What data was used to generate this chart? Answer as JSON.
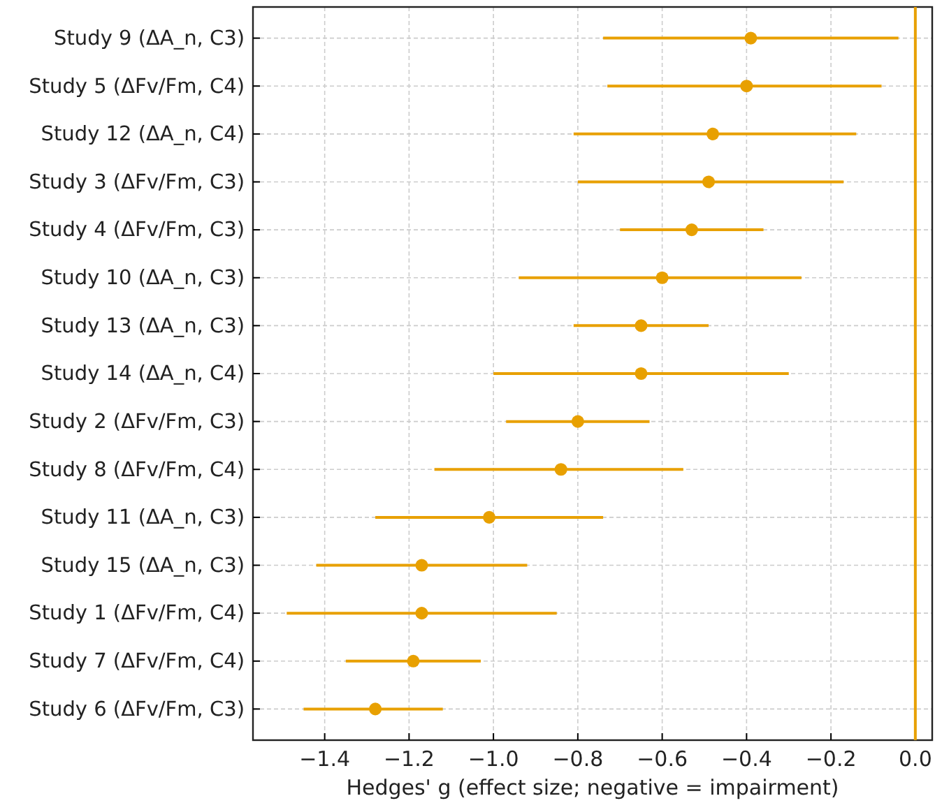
{
  "chart_data": {
    "type": "scatter",
    "orientation": "horizontal",
    "xlabel": "Hedges' g (effect size; negative = impairment)",
    "categories": [
      "Study 9 (ΔA_n, C3)",
      "Study 5 (ΔFv/Fm, C4)",
      "Study 12 (ΔA_n, C4)",
      "Study 3 (ΔFv/Fm, C3)",
      "Study 4 (ΔFv/Fm, C3)",
      "Study 10 (ΔA_n, C3)",
      "Study 13 (ΔA_n, C3)",
      "Study 14 (ΔA_n, C4)",
      "Study 2 (ΔFv/Fm, C3)",
      "Study 8 (ΔFv/Fm, C4)",
      "Study 11 (ΔA_n, C3)",
      "Study 15 (ΔA_n, C3)",
      "Study 1 (ΔFv/Fm, C4)",
      "Study 7 (ΔFv/Fm, C4)",
      "Study 6 (ΔFv/Fm, C3)"
    ],
    "values": [
      -0.39,
      -0.4,
      -0.48,
      -0.49,
      -0.53,
      -0.6,
      -0.65,
      -0.65,
      -0.8,
      -0.84,
      -1.01,
      -1.17,
      -1.17,
      -1.19,
      -1.28
    ],
    "errors": [
      [
        -0.74,
        -0.04
      ],
      [
        -0.73,
        -0.08
      ],
      [
        -0.81,
        -0.14
      ],
      [
        -0.8,
        -0.17
      ],
      [
        -0.7,
        -0.36
      ],
      [
        -0.94,
        -0.27
      ],
      [
        -0.81,
        -0.49
      ],
      [
        -1.0,
        -0.3
      ],
      [
        -0.97,
        -0.63
      ],
      [
        -1.14,
        -0.55
      ],
      [
        -1.28,
        -0.74
      ],
      [
        -1.42,
        -0.92
      ],
      [
        -1.49,
        -0.85
      ],
      [
        -1.35,
        -1.03
      ],
      [
        -1.45,
        -1.12
      ]
    ],
    "color": "#e8a000",
    "marker": "circle",
    "grid": true,
    "xlim": [
      -1.57,
      0.04
    ],
    "xticks": [
      {
        "value": -1.4,
        "label": "−1.4"
      },
      {
        "value": -1.2,
        "label": "−1.2"
      },
      {
        "value": -1.0,
        "label": "−1.0"
      },
      {
        "value": -0.8,
        "label": "−0.8"
      },
      {
        "value": -0.6,
        "label": "−0.6"
      },
      {
        "value": -0.4,
        "label": "−0.4"
      },
      {
        "value": -0.2,
        "label": "−0.2"
      },
      {
        "value": 0,
        "label": "0.0"
      }
    ],
    "ref_lines": [
      {
        "axis": "x",
        "value": 0,
        "color": "#e8a000"
      }
    ]
  }
}
